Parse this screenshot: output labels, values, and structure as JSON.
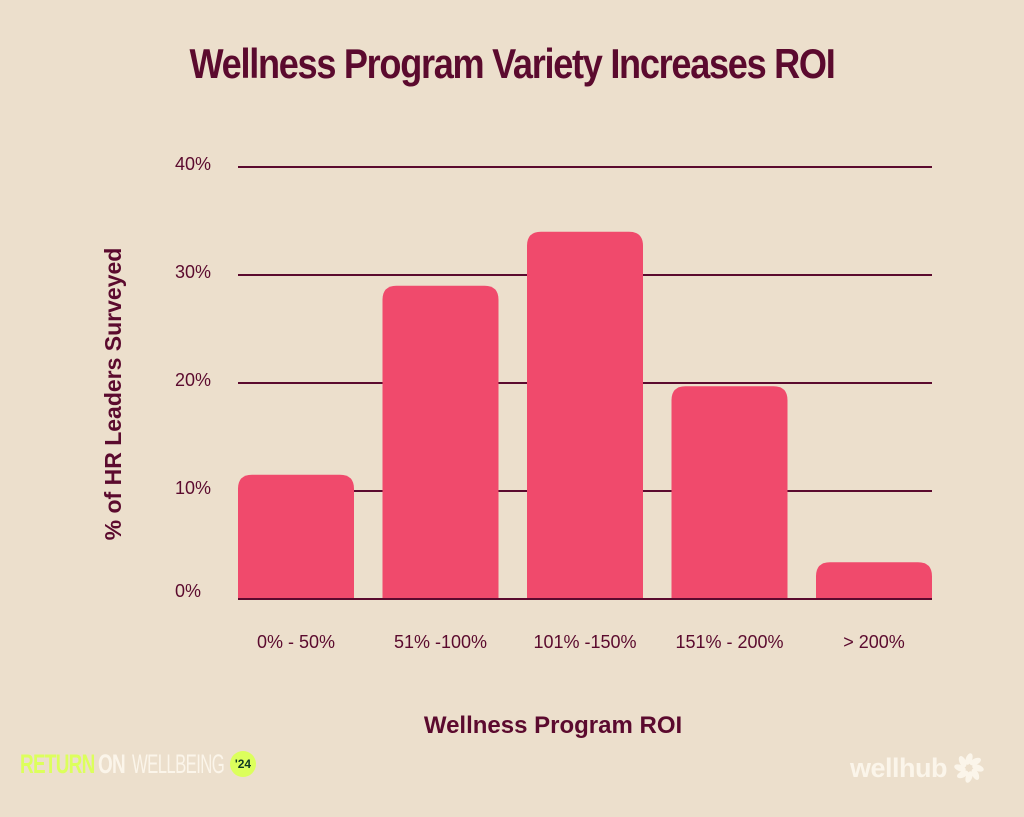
{
  "title": "Wellness Program Variety Increases ROI",
  "chart_data": {
    "type": "bar",
    "title": "Wellness Program Variety Increases ROI",
    "xlabel": "Wellness Program ROI",
    "ylabel": "% of  HR Leaders Surveyed",
    "categories": [
      "0% - 50%",
      "51% -100%",
      "101% -150%",
      "151% - 200%",
      "> 200%"
    ],
    "values": [
      11.5,
      29,
      34,
      19.7,
      3.4
    ],
    "unit": "%",
    "ylim": [
      0,
      40
    ],
    "yticks": [
      {
        "value": 0,
        "label": "0%"
      },
      {
        "value": 10,
        "label": "10%"
      },
      {
        "value": 20,
        "label": "20%"
      },
      {
        "value": 30,
        "label": "30%"
      },
      {
        "value": 40,
        "label": "40%"
      }
    ],
    "grid": true,
    "legend": "none",
    "colors": {
      "bar": "#f04a6c",
      "grid": "#5b0a2e",
      "text": "#5b0a2e",
      "background": "#ecdfcc"
    }
  },
  "branding": {
    "left": {
      "word1": "RETURN",
      "word2": "ON",
      "word3": "WELLBEING",
      "badge": "'24"
    },
    "right": {
      "wordmark": "wellhub",
      "icon": "pinwheel-logo-icon"
    }
  }
}
